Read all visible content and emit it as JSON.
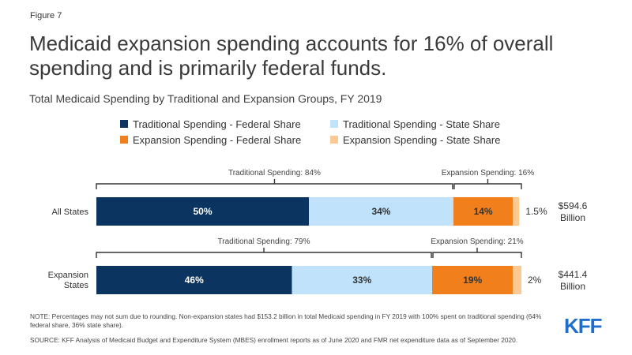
{
  "figure_label": "Figure 7",
  "title": "Medicaid expansion spending accounts for 16% of overall spending and is primarily federal funds.",
  "subtitle": "Total Medicaid Spending by Traditional and Expansion Groups, FY 2019",
  "colors": {
    "trad_federal": "#0b3560",
    "trad_state": "#c0e3fb",
    "exp_federal": "#f07f1c",
    "exp_state": "#fcc992"
  },
  "chart_data": {
    "type": "bar",
    "orientation": "horizontal",
    "stacked": true,
    "categories": [
      "All States",
      "Expansion States"
    ],
    "category_lines": [
      [
        "All States"
      ],
      [
        "Expansion",
        "States"
      ]
    ],
    "series": [
      {
        "name": "Traditional Spending - Federal Share",
        "values": [
          50,
          46
        ],
        "labels": [
          "50%",
          "46%"
        ],
        "color": "#0b3560",
        "label_color": "#ffffff"
      },
      {
        "name": "Traditional Spending - State Share",
        "values": [
          34,
          33
        ],
        "labels": [
          "34%",
          "33%"
        ],
        "color": "#c0e3fb",
        "label_color": "#333333"
      },
      {
        "name": "Expansion Spending - Federal Share",
        "values": [
          14,
          19
        ],
        "labels": [
          "14%",
          "19%"
        ],
        "color": "#f07f1c",
        "label_color": "#333333"
      },
      {
        "name": "Expansion Spending - State Share",
        "values": [
          1.5,
          2
        ],
        "labels": [
          "1.5%",
          "2%"
        ],
        "color": "#fcc992",
        "label_color": "#333333"
      }
    ],
    "group_brackets": [
      [
        {
          "label": "Traditional Spending: 84%",
          "from": 0,
          "to": 84
        },
        {
          "label": "Expansion Spending: 16%",
          "from": 84,
          "to": 100
        }
      ],
      [
        {
          "label": "Traditional Spending: 79%",
          "from": 0,
          "to": 79
        },
        {
          "label": "Expansion Spending: 21%",
          "from": 79,
          "to": 100
        }
      ]
    ],
    "totals": [
      {
        "amount": "$594.6",
        "unit": "Billion"
      },
      {
        "amount": "$441.4",
        "unit": "Billion"
      }
    ],
    "xlim": [
      0,
      100
    ],
    "legend_position": "top",
    "grid": false
  },
  "note": "NOTE: Percentages may not sum due to rounding. Non-expansion states had $153.2 billion in total Medicaid spending in FY 2019 with 100% spent on traditional spending (64% federal share, 36% state share).",
  "source": "SOURCE: KFF Analysis of Medicaid Budget and Expenditure System (MBES) enrollment reports as of June 2020 and FMR net expenditure data as of September 2020.",
  "logo_text": "KFF"
}
